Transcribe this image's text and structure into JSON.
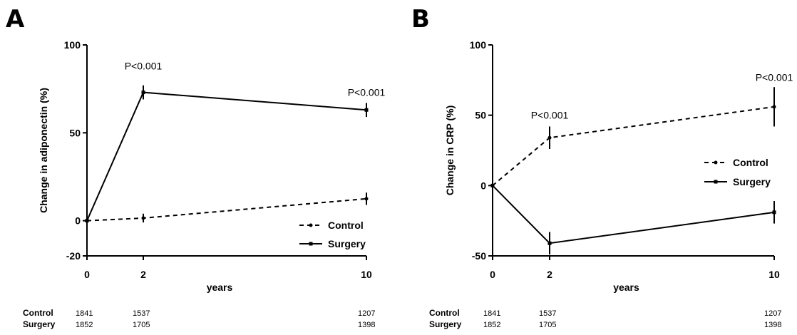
{
  "chart_data": [
    {
      "panel": "A",
      "type": "line",
      "ylabel": "Change in adiponectin (%)",
      "xlabel": "years",
      "x": [
        0,
        2,
        10
      ],
      "xticks": [
        "0",
        "2",
        "10"
      ],
      "ylim": [
        -20,
        100
      ],
      "yticks": [
        -20,
        0,
        50,
        100
      ],
      "yticklabels": [
        "-20",
        "0",
        "50",
        "100"
      ],
      "series": [
        {
          "name": "Control",
          "style": "dashed",
          "values": [
            0,
            1.5,
            12.5
          ],
          "errors": [
            0,
            2.5,
            3.5
          ]
        },
        {
          "name": "Surgery",
          "style": "solid",
          "values": [
            0,
            73,
            63
          ],
          "errors": [
            0,
            4,
            4
          ]
        }
      ],
      "annotations": [
        {
          "text": "P<0.001",
          "x": 2,
          "y": 88
        },
        {
          "text": "P<0.001",
          "x": 10,
          "y": 73
        }
      ],
      "legend_position": "bottom-right",
      "risk_table": {
        "rows": [
          {
            "label": "Control",
            "values": [
              "1841",
              "1537",
              "1207"
            ]
          },
          {
            "label": "Surgery",
            "values": [
              "1852",
              "1705",
              "1398"
            ]
          }
        ]
      }
    },
    {
      "panel": "B",
      "type": "line",
      "ylabel": "Change in CRP (%)",
      "xlabel": "years",
      "x": [
        0,
        2,
        10
      ],
      "xticks": [
        "0",
        "2",
        "10"
      ],
      "ylim": [
        -50,
        100
      ],
      "yticks": [
        -50,
        0,
        50,
        100
      ],
      "yticklabels": [
        "-50",
        "0",
        "50",
        "100"
      ],
      "series": [
        {
          "name": "Control",
          "style": "dashed",
          "values": [
            0,
            34,
            56
          ],
          "errors": [
            0,
            8,
            14
          ]
        },
        {
          "name": "Surgery",
          "style": "solid",
          "values": [
            0,
            -41,
            -19
          ],
          "errors": [
            0,
            8,
            8
          ]
        }
      ],
      "annotations": [
        {
          "text": "P<0.001",
          "x": 2,
          "y": 50
        },
        {
          "text": "P<0.001",
          "x": 10,
          "y": 77
        }
      ],
      "legend_position": "right",
      "risk_table": {
        "rows": [
          {
            "label": "Control",
            "values": [
              "1841",
              "1537",
              "1207"
            ]
          },
          {
            "label": "Surgery",
            "values": [
              "1852",
              "1705",
              "1398"
            ]
          }
        ]
      }
    }
  ]
}
